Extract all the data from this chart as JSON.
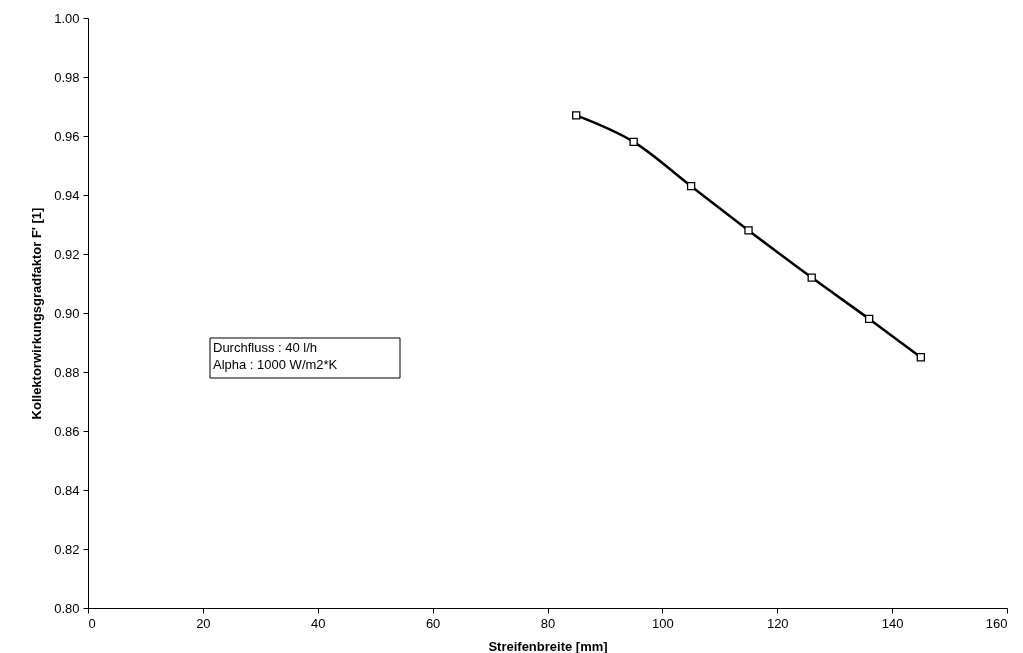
{
  "chart_data": {
    "type": "line",
    "xlabel": "Streifenbreite [mm]",
    "ylabel": "Kollektorwirkungsgradfaktor F' [1]",
    "x": [
      85,
      95,
      105,
      115,
      126,
      136,
      145
    ],
    "series": [
      {
        "color": "#000000",
        "values": [
          0.967,
          0.958,
          0.943,
          0.928,
          0.912,
          0.898,
          0.885
        ]
      }
    ],
    "xlim": [
      0,
      160
    ],
    "xticks": [
      0,
      20,
      40,
      60,
      80,
      100,
      120,
      140,
      160
    ],
    "ylim": [
      0.8,
      1.0
    ],
    "yticks": [
      {
        "value": 0.8,
        "label": "0.80"
      },
      {
        "value": 0.82,
        "label": "0.82"
      },
      {
        "value": 0.84,
        "label": "0.84"
      },
      {
        "value": 0.86,
        "label": "0.86"
      },
      {
        "value": 0.88,
        "label": "0.88"
      },
      {
        "value": 0.9,
        "label": "0.90"
      },
      {
        "value": 0.92,
        "label": "0.92"
      },
      {
        "value": 0.94,
        "label": "0.94"
      },
      {
        "value": 0.96,
        "label": "0.96"
      },
      {
        "value": 0.98,
        "label": "0.98"
      },
      {
        "value": 1.0,
        "label": "1.00"
      }
    ],
    "annotations": [
      "Durchfluss : 40 l/h",
      "Alpha :  1000 W/m2*K"
    ],
    "marker": "square",
    "line_style": "solid",
    "grid": false
  }
}
